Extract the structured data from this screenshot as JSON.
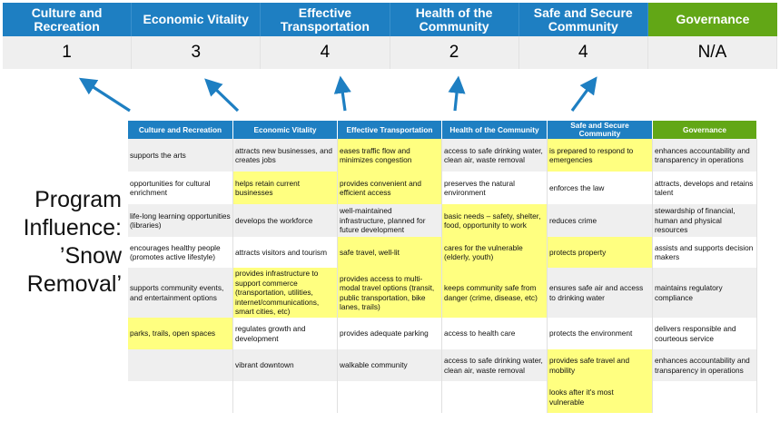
{
  "categories": [
    "Culture and Recreation",
    "Economic Vitality",
    "Effective Transportation",
    "Health of the Community",
    "Safe and Secure Community",
    "Governance"
  ],
  "scores": [
    "1",
    "3",
    "4",
    "2",
    "4",
    "N/A"
  ],
  "colors": {
    "header_blue": "#1e7fc2",
    "governance_green": "#62a716",
    "highlight": "#ffff80",
    "arrow": "#1e7fc2"
  },
  "program_label": "Program Influence: ’Snow Removal’",
  "table": {
    "headers": [
      "Culture and Recreation",
      "Economic Vitality",
      "Effective Transportation",
      "Health of the Community",
      "Safe and Secure Community",
      "Governance"
    ],
    "rows": [
      {
        "cells": [
          "supports the arts",
          "attracts new businesses, and creates jobs",
          "eases traffic flow and minimizes congestion",
          "access to safe drinking water, clean air, waste removal",
          "is prepared to respond to emergencies",
          "enhances accountability and transparency in operations"
        ],
        "highlight": [
          2,
          4
        ]
      },
      {
        "cells": [
          "opportunities for cultural enrichment",
          "helps retain current businesses",
          "provides convenient and efficient access",
          "preserves the natural environment",
          "enforces the law",
          "attracts, develops and retains talent"
        ],
        "highlight": [
          1,
          2
        ]
      },
      {
        "cells": [
          "life-long learning opportunities (libraries)",
          "develops the workforce",
          "well-maintained infrastructure, planned for future development",
          "basic needs – safety, shelter, food, opportunity to work",
          "reduces crime",
          "stewardship of financial, human and physical resources"
        ],
        "highlight": [
          3
        ]
      },
      {
        "cells": [
          "encourages healthy people (promotes active lifestyle)",
          "attracts visitors and tourism",
          "safe travel, well-lit",
          "cares for the vulnerable (elderly, youth)",
          "protects property",
          "assists and supports decision makers"
        ],
        "highlight": [
          2,
          3,
          4
        ]
      },
      {
        "cells": [
          "supports community events, and entertainment options",
          "provides infrastructure to support commerce (transportation, utilities, internet/communications, smart cities, etc)",
          "provides access to multi-modal travel options (transit, public transportation, bike lanes, trails)",
          "keeps community safe from danger (crime, disease, etc)",
          "ensures safe air and access to drinking water",
          "maintains regulatory compliance"
        ],
        "highlight": [
          1,
          2,
          3
        ]
      },
      {
        "cells": [
          "parks, trails, open spaces",
          "regulates growth and development",
          "provides adequate parking",
          "access to health care",
          "protects the environment",
          "delivers responsible and courteous service"
        ],
        "highlight": [
          0
        ]
      },
      {
        "cells": [
          "",
          "vibrant downtown",
          "walkable community",
          "access to safe drinking water, clean air, waste removal",
          "provides safe travel and mobility",
          "enhances accountability and transparency in operations"
        ],
        "highlight": [
          4
        ]
      },
      {
        "cells": [
          "",
          "",
          "",
          "",
          "looks after it's most vulnerable",
          ""
        ],
        "highlight": [
          4
        ]
      }
    ]
  }
}
